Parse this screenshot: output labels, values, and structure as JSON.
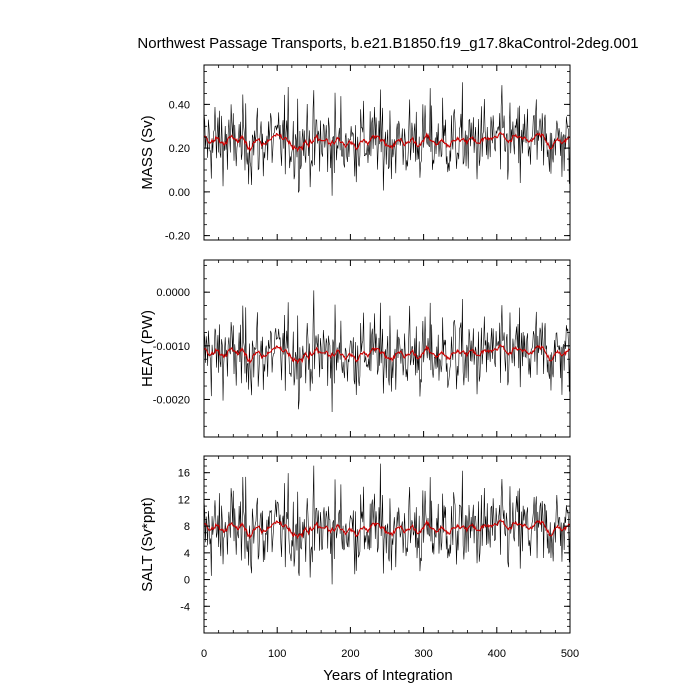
{
  "chart_data": {
    "type": "line",
    "title": "Northwest Passage Transports, b.e21.B1850.f19_g17.8kaControl-2deg.001",
    "xlabel": "Years of Integration",
    "x_range": [
      0,
      500
    ],
    "x_ticks": [
      0,
      100,
      200,
      300,
      400,
      500
    ],
    "x_tick_labels": [
      "0",
      "100",
      "200",
      "300",
      "400",
      "500"
    ],
    "series_colors": {
      "raw": "#000000",
      "smoothed": "#cc0000"
    },
    "panels": [
      {
        "ylabel": "MASS (Sv)",
        "ylim": [
          -0.22,
          0.58
        ],
        "y_ticks": [
          -0.2,
          0.0,
          0.2,
          0.4
        ],
        "y_tick_labels": [
          "-0.20",
          "0.00",
          "0.20",
          "0.40"
        ],
        "mean": 0.23,
        "spread": 0.11,
        "smoothed_spread": 0.025
      },
      {
        "ylabel": "HEAT (PW)",
        "ylim": [
          -0.0027,
          0.0006
        ],
        "y_ticks": [
          -0.002,
          -0.001,
          0.0
        ],
        "y_tick_labels": [
          "-0.0020",
          "-0.0010",
          "0.0000"
        ],
        "mean": -0.00115,
        "spread": 0.00045,
        "smoothed_spread": 0.0001
      },
      {
        "ylabel": "SALT (Sv*ppt)",
        "ylim": [
          -8,
          18.5
        ],
        "y_ticks": [
          -4,
          0,
          4,
          8,
          12,
          16
        ],
        "y_tick_labels": [
          "-4",
          "0",
          "4",
          "8",
          "12",
          "16"
        ],
        "mean": 7.6,
        "spread": 3.7,
        "smoothed_spread": 0.8
      }
    ]
  }
}
